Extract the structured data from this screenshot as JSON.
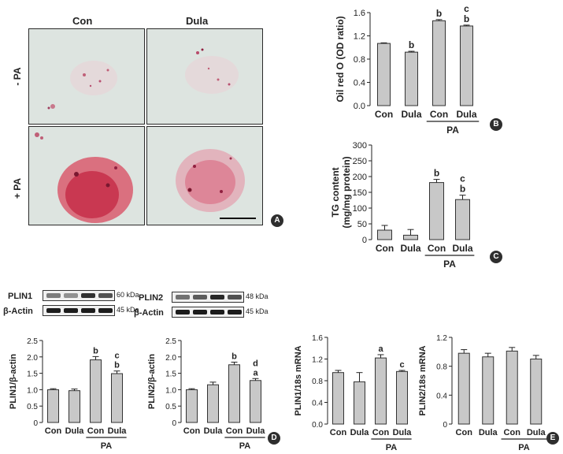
{
  "panelA": {
    "col_headers": [
      "Con",
      "Dula"
    ],
    "row_labels": [
      "- PA",
      "+ PA"
    ],
    "badge": "A"
  },
  "chart_data": [
    {
      "id": "B",
      "type": "bar",
      "ylabel": "Oil red O (OD ratio)",
      "categories": [
        "Con",
        "Dula",
        "Con",
        "Dula"
      ],
      "values": [
        1.07,
        0.92,
        1.46,
        1.37
      ],
      "errors": [
        0.01,
        0.015,
        0.02,
        0.015
      ],
      "sig": [
        "",
        "b",
        "b",
        "c\nb"
      ],
      "ylim": [
        0,
        1.6
      ],
      "yticks": [
        "0.0",
        "0.4",
        "0.8",
        "1.2",
        "1.6"
      ],
      "group_label": "PA",
      "badge": "B"
    },
    {
      "id": "C",
      "type": "bar",
      "ylabel": "TG content\n(mg/mg protein)",
      "categories": [
        "Con",
        "Dula",
        "Con",
        "Dula"
      ],
      "values": [
        30,
        14,
        181,
        127
      ],
      "errors": [
        15,
        18,
        10,
        14
      ],
      "sig": [
        "",
        "",
        "b",
        "c\nb"
      ],
      "ylim": [
        0,
        300
      ],
      "yticks": [
        "0",
        "50",
        "100",
        "150",
        "200",
        "250",
        "300"
      ],
      "group_label": "PA",
      "badge": "C"
    },
    {
      "id": "D1",
      "type": "bar",
      "ylabel": "PLIN1/β-actin",
      "categories": [
        "Con",
        "Dula",
        "Con",
        "Dula"
      ],
      "values": [
        1.0,
        0.97,
        1.91,
        1.49
      ],
      "errors": [
        0.03,
        0.05,
        0.1,
        0.08
      ],
      "sig": [
        "",
        "",
        "b",
        "c\nb"
      ],
      "ylim": [
        0,
        2.5
      ],
      "yticks": [
        "0",
        "0.5",
        "1.0",
        "1.5",
        "2.0",
        "2.5"
      ],
      "group_label": "PA",
      "blot": {
        "top": "PLIN1",
        "top_kda": "60 kDa",
        "bottom": "β-Actin",
        "bottom_kda": "45 kDa"
      }
    },
    {
      "id": "D2",
      "type": "bar",
      "ylabel": "PLIN2/β-actin",
      "categories": [
        "Con",
        "Dula",
        "Con",
        "Dula"
      ],
      "values": [
        1.0,
        1.15,
        1.76,
        1.28
      ],
      "errors": [
        0.03,
        0.08,
        0.08,
        0.06
      ],
      "sig": [
        "",
        "",
        "b",
        "d\na"
      ],
      "ylim": [
        0,
        2.5
      ],
      "yticks": [
        "0",
        "0.5",
        "1.0",
        "1.5",
        "2.0",
        "2.5"
      ],
      "group_label": "PA",
      "badge": "D",
      "blot": {
        "top": "PLIN2",
        "top_kda": "48 kDa",
        "bottom": "β-Actin",
        "bottom_kda": "45 kDa"
      }
    },
    {
      "id": "E1",
      "type": "bar",
      "ylabel": "PLIN1/18s mRNA",
      "categories": [
        "Con",
        "Dula",
        "Con",
        "Dula"
      ],
      "values": [
        0.95,
        0.78,
        1.22,
        0.97
      ],
      "errors": [
        0.04,
        0.17,
        0.06,
        0.02
      ],
      "sig": [
        "",
        "",
        "a",
        "c"
      ],
      "ylim": [
        0,
        1.6
      ],
      "yticks": [
        "0.0",
        "0.4",
        "0.8",
        "1.2",
        "1.6"
      ],
      "group_label": "PA"
    },
    {
      "id": "E2",
      "type": "bar",
      "ylabel": "PLIN2/18s mRNA",
      "categories": [
        "Con",
        "Dula",
        "Con",
        "Dula"
      ],
      "values": [
        0.98,
        0.93,
        1.01,
        0.9
      ],
      "errors": [
        0.05,
        0.05,
        0.05,
        0.05
      ],
      "sig": [
        "",
        "",
        "",
        ""
      ],
      "ylim": [
        0,
        1.2
      ],
      "yticks": [
        "0",
        "0.4",
        "0.8",
        "1.2"
      ],
      "group_label": "PA",
      "badge": "E"
    }
  ]
}
